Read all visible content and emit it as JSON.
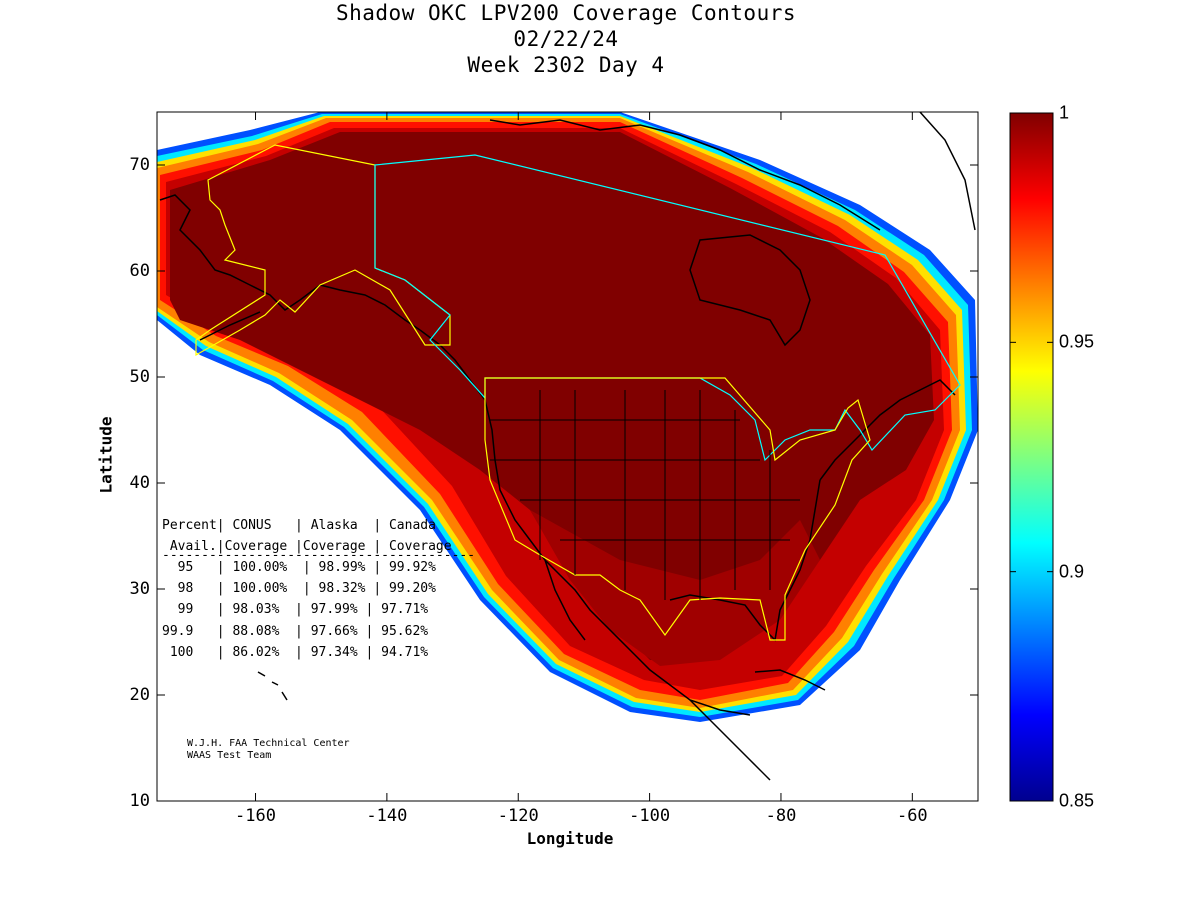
{
  "title": {
    "line1": "Shadow OKC LPV200 Coverage Contours",
    "line2": "02/22/24",
    "line3": "Week 2302 Day 4"
  },
  "axes": {
    "xlabel": "Longitude",
    "ylabel": "Latitude",
    "xlim": [
      -175,
      -50
    ],
    "ylim": [
      10,
      75
    ],
    "xticks": [
      "-160",
      "-140",
      "-120",
      "-100",
      "-80",
      "-60"
    ],
    "xtick_values": [
      -160,
      -140,
      -120,
      -100,
      -80,
      -60
    ],
    "yticks": [
      "70",
      "60",
      "50",
      "40",
      "30",
      "20",
      "10"
    ],
    "ytick_values": [
      70,
      60,
      50,
      40,
      30,
      20,
      10
    ]
  },
  "colorbar": {
    "min": 0.85,
    "max": 1,
    "labels": [
      "1",
      "0.95",
      "0.9",
      "0.85"
    ],
    "label_values": [
      1,
      0.95,
      0.9,
      0.85
    ],
    "colormap": "jet"
  },
  "stats_table": {
    "header1": "Percent| CONUS   | Alaska  | Canada",
    "header2": " Avail.|Coverage |Coverage | Coverage",
    "divider": "----------------------------------------",
    "rows": [
      "  95   | 100.00%  | 98.99% | 99.92%",
      "  98   | 100.00%  | 98.32% | 99.20%",
      "  99   | 98.03%  | 97.99% | 97.71%",
      "99.9   | 88.08%  | 97.66% | 95.62%",
      " 100   | 86.02%  | 97.34% | 94.71%"
    ]
  },
  "credit": {
    "line1": "W.J.H. FAA Technical Center",
    "line2": "WAAS Test Team"
  },
  "colors": {
    "full_coverage": "#800000",
    "conus_outline": "#ffff00",
    "alaska_outline": "#ffff00",
    "canada_outline": "#00ffff",
    "coastline": "#000000"
  }
}
